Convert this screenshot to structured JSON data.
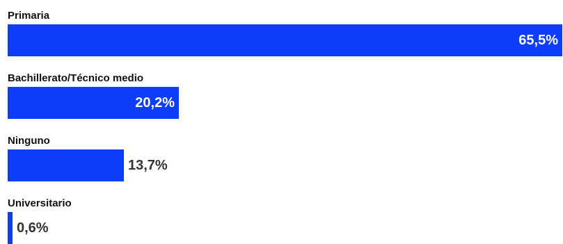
{
  "chart_data": {
    "type": "bar",
    "orientation": "horizontal",
    "categories": [
      "Primaria",
      "Bachillerato/Técnico medio",
      "Ninguno",
      "Universitario"
    ],
    "values": [
      65.5,
      20.2,
      13.7,
      0.6
    ],
    "value_labels": [
      "65,5%",
      "20,2%",
      "13,7%",
      "0,6%"
    ],
    "xlim": [
      0,
      65.5
    ],
    "bar_color": "#0d3df8",
    "grid": false,
    "legend": "none"
  }
}
